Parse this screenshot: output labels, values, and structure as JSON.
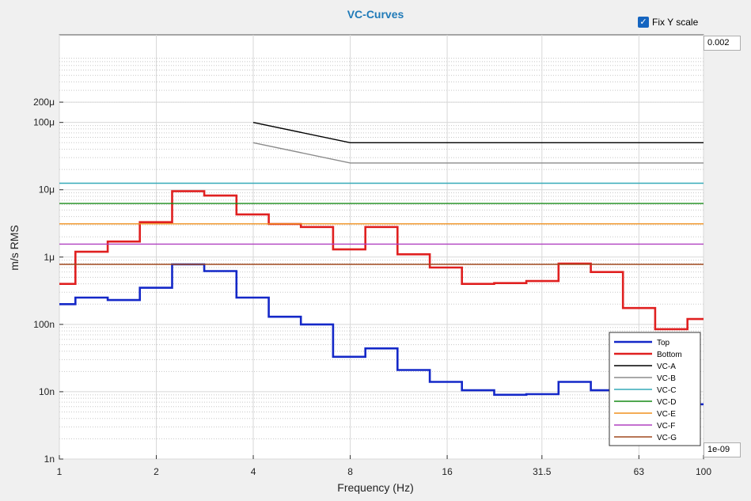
{
  "chart_data": {
    "type": "line",
    "title": "VC-Curves",
    "xlabel": "Frequency (Hz)",
    "ylabel": "m/s RMS",
    "x_scale": "log2",
    "y_scale": "log10",
    "xlim": [
      1,
      100
    ],
    "ylim": [
      1e-09,
      0.002
    ],
    "x_ticks": [
      1,
      2,
      4,
      8,
      16,
      31.5,
      63,
      100
    ],
    "x_tick_labels": [
      "1",
      "2",
      "4",
      "8",
      "16",
      "31.5",
      "63",
      "100"
    ],
    "y_ticks": [
      1e-09,
      1e-08,
      1e-07,
      1e-06,
      1e-05,
      0.0001,
      0.0002
    ],
    "y_tick_labels": [
      "1n",
      "10n",
      "100n",
      "1μ",
      "10μ",
      "100μ",
      "200μ"
    ],
    "grid": true,
    "legend_position": "bottom-right",
    "series": [
      {
        "name": "Top",
        "color": "#1428c8",
        "style": "step",
        "x": [
          1,
          1.122,
          1.413,
          1.778,
          2.239,
          2.818,
          3.548,
          4.467,
          5.623,
          7.079,
          8.913,
          11.22,
          14.13,
          17.78,
          22.39,
          28.18,
          35.48,
          44.67,
          56.23,
          70.79,
          89.13,
          100
        ],
        "y": [
          2e-07,
          2.5e-07,
          2.3e-07,
          3.5e-07,
          7.8e-07,
          6.2e-07,
          2.5e-07,
          1.3e-07,
          1e-07,
          3.3e-08,
          4.4e-08,
          2.1e-08,
          1.4e-08,
          1.05e-08,
          9e-09,
          9.2e-09,
          1.4e-08,
          1.05e-08,
          1.05e-08,
          8.5e-09,
          6.5e-09,
          6.5e-09
        ]
      },
      {
        "name": "Bottom",
        "color": "#e02020",
        "style": "step",
        "x": [
          1,
          1.122,
          1.413,
          1.778,
          2.239,
          2.818,
          3.548,
          4.467,
          5.623,
          7.079,
          8.913,
          11.22,
          14.13,
          17.78,
          22.39,
          28.18,
          35.48,
          44.67,
          56.23,
          70.79,
          89.13,
          100
        ],
        "y": [
          4e-07,
          1.2e-06,
          1.7e-06,
          3.3e-06,
          9.5e-06,
          8.2e-06,
          4.3e-06,
          3.1e-06,
          2.8e-06,
          1.3e-06,
          2.8e-06,
          1.1e-06,
          7e-07,
          4e-07,
          4.1e-07,
          4.4e-07,
          8e-07,
          6e-07,
          1.75e-07,
          8.5e-08,
          1.2e-07,
          1.2e-07
        ]
      },
      {
        "name": "VC-A",
        "color": "#000000",
        "style": "line",
        "x": [
          4,
          8,
          100
        ],
        "y": [
          0.0001,
          5e-05,
          5e-05
        ]
      },
      {
        "name": "VC-B",
        "color": "#8c8c8c",
        "style": "line",
        "x": [
          4,
          8,
          100
        ],
        "y": [
          5e-05,
          2.5e-05,
          2.5e-05
        ]
      },
      {
        "name": "VC-C",
        "color": "#36aab8",
        "style": "line",
        "x": [
          1,
          100
        ],
        "y": [
          1.25e-05,
          1.25e-05
        ]
      },
      {
        "name": "VC-D",
        "color": "#178a17",
        "style": "line",
        "x": [
          1,
          100
        ],
        "y": [
          6.25e-06,
          6.25e-06
        ]
      },
      {
        "name": "VC-E",
        "color": "#f0901e",
        "style": "line",
        "x": [
          1,
          100
        ],
        "y": [
          3.12e-06,
          3.12e-06
        ]
      },
      {
        "name": "VC-F",
        "color": "#b040c0",
        "style": "line",
        "x": [
          1,
          100
        ],
        "y": [
          1.56e-06,
          1.56e-06
        ]
      },
      {
        "name": "VC-G",
        "color": "#a0481e",
        "style": "line",
        "x": [
          1,
          100
        ],
        "y": [
          7.8e-07,
          7.8e-07
        ]
      }
    ]
  },
  "controls": {
    "fix_y_scale_label": "Fix Y scale",
    "fix_y_scale_checked": true,
    "y_max_value": "0.002",
    "y_min_value": "1e-09"
  }
}
